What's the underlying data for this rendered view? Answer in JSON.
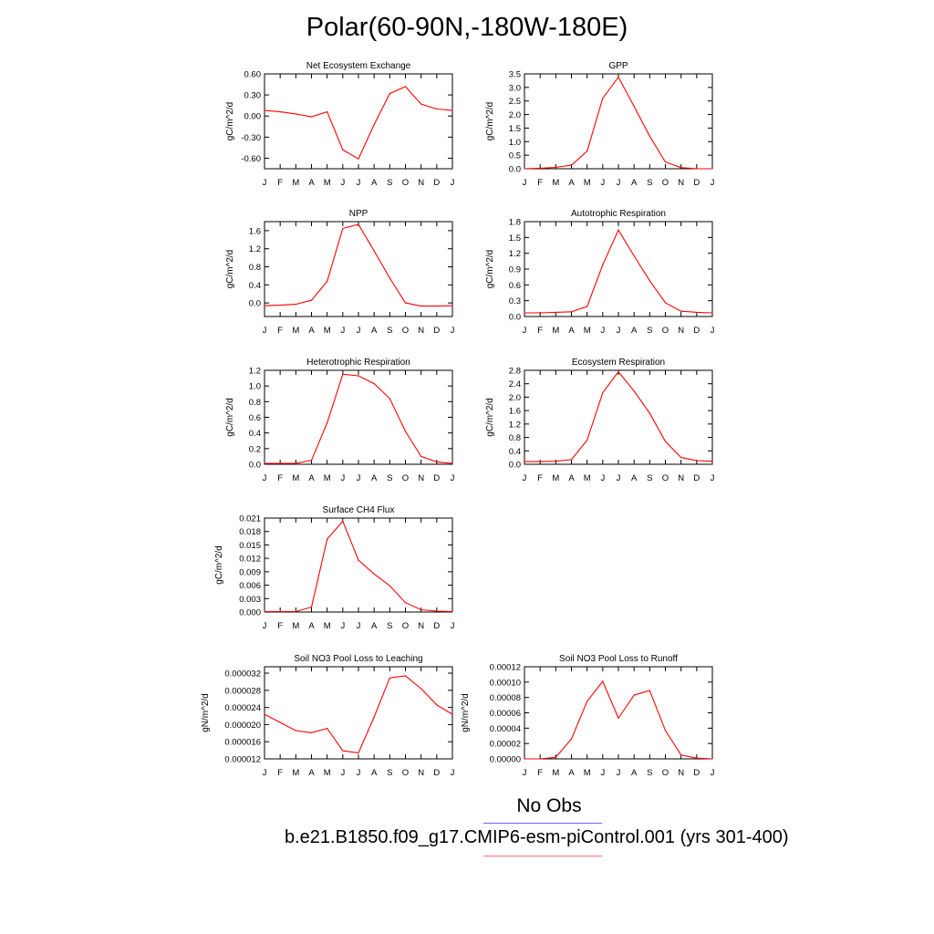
{
  "title": "Polar(60-90N,-180W-180E)",
  "legend": {
    "obs_label": "No Obs",
    "obs_color": "#6b6bff",
    "model_label": "b.e21.B1850.f09_g17.CMIP6-esm-piControl.001 (yrs 301-400)",
    "model_color": "#ff6b6b"
  },
  "line_color": "#ff0000",
  "chart_data": [
    {
      "type": "line",
      "title": "Net Ecosystem Exchange",
      "ylabel": "gC/m^2/d",
      "categories": [
        "J",
        "F",
        "M",
        "A",
        "M",
        "J",
        "J",
        "A",
        "S",
        "O",
        "N",
        "D",
        "J"
      ],
      "ylim": [
        -0.75,
        0.6
      ],
      "yticks": [
        "0.60",
        "0.30",
        "0.00",
        "-0.30",
        "-0.60"
      ],
      "ytick_values": [
        0.6,
        0.3,
        0.0,
        -0.3,
        -0.6
      ],
      "values": [
        0.08,
        0.06,
        0.03,
        -0.01,
        0.06,
        -0.48,
        -0.61,
        -0.12,
        0.32,
        0.42,
        0.17,
        0.1,
        0.08
      ]
    },
    {
      "type": "line",
      "title": "GPP",
      "ylabel": "gC/m^2/d",
      "categories": [
        "J",
        "F",
        "M",
        "A",
        "M",
        "J",
        "J",
        "A",
        "S",
        "O",
        "N",
        "D",
        "J"
      ],
      "ylim": [
        0,
        3.5
      ],
      "yticks": [
        "3.5",
        "3.0",
        "2.5",
        "2.0",
        "1.5",
        "1.0",
        "0.5",
        "0.0"
      ],
      "ytick_values": [
        3.5,
        3.0,
        2.5,
        2.0,
        1.5,
        1.0,
        0.5,
        0.0
      ],
      "values": [
        0.0,
        0.02,
        0.05,
        0.13,
        0.65,
        2.6,
        3.38,
        2.3,
        1.2,
        0.25,
        0.04,
        0.0,
        0.0
      ]
    },
    {
      "type": "line",
      "title": "NPP",
      "ylabel": "gC/m^2/d",
      "categories": [
        "J",
        "F",
        "M",
        "A",
        "M",
        "J",
        "J",
        "A",
        "S",
        "O",
        "N",
        "D",
        "J"
      ],
      "ylim": [
        -0.3,
        1.8
      ],
      "yticks": [
        "1.6",
        "1.2",
        "0.8",
        "0.4",
        "0.0"
      ],
      "ytick_values": [
        1.6,
        1.2,
        0.8,
        0.4,
        0.0
      ],
      "values": [
        -0.06,
        -0.05,
        -0.03,
        0.06,
        0.48,
        1.65,
        1.74,
        1.15,
        0.55,
        0.0,
        -0.07,
        -0.07,
        -0.06
      ]
    },
    {
      "type": "line",
      "title": "Autotrophic Respiration",
      "ylabel": "gC/m^2/d",
      "categories": [
        "J",
        "F",
        "M",
        "A",
        "M",
        "J",
        "J",
        "A",
        "S",
        "O",
        "N",
        "D",
        "J"
      ],
      "ylim": [
        0,
        1.8
      ],
      "yticks": [
        "1.8",
        "1.5",
        "1.2",
        "0.9",
        "0.6",
        "0.3",
        "0.0"
      ],
      "ytick_values": [
        1.8,
        1.5,
        1.2,
        0.9,
        0.6,
        0.3,
        0.0
      ],
      "values": [
        0.07,
        0.07,
        0.08,
        0.09,
        0.19,
        0.98,
        1.64,
        1.15,
        0.68,
        0.26,
        0.1,
        0.08,
        0.07
      ]
    },
    {
      "type": "line",
      "title": "Heterotrophic Respiration",
      "ylabel": "gC/m^2/d",
      "categories": [
        "J",
        "F",
        "M",
        "A",
        "M",
        "J",
        "J",
        "A",
        "S",
        "O",
        "N",
        "D",
        "J"
      ],
      "ylim": [
        0,
        1.2
      ],
      "yticks": [
        "1.2",
        "1.0",
        "0.8",
        "0.6",
        "0.4",
        "0.2",
        "0.0"
      ],
      "ytick_values": [
        1.2,
        1.0,
        0.8,
        0.6,
        0.4,
        0.2,
        0.0
      ],
      "values": [
        0.01,
        0.01,
        0.01,
        0.05,
        0.53,
        1.15,
        1.13,
        1.03,
        0.84,
        0.42,
        0.1,
        0.03,
        0.01
      ]
    },
    {
      "type": "line",
      "title": "Ecosystem Respiration",
      "ylabel": "gC/m^2/d",
      "categories": [
        "J",
        "F",
        "M",
        "A",
        "M",
        "J",
        "J",
        "A",
        "S",
        "O",
        "N",
        "D",
        "J"
      ],
      "ylim": [
        0,
        2.8
      ],
      "yticks": [
        "2.8",
        "2.4",
        "2.0",
        "1.6",
        "1.2",
        "0.8",
        "0.4",
        "0.0"
      ],
      "ytick_values": [
        2.8,
        2.4,
        2.0,
        1.6,
        1.2,
        0.8,
        0.4,
        0.0
      ],
      "values": [
        0.08,
        0.08,
        0.09,
        0.14,
        0.72,
        2.13,
        2.76,
        2.18,
        1.52,
        0.68,
        0.2,
        0.11,
        0.09
      ]
    },
    {
      "type": "line",
      "title": "Surface CH4 Flux",
      "ylabel": "gC/m^2/d",
      "categories": [
        "J",
        "F",
        "M",
        "A",
        "M",
        "J",
        "J",
        "A",
        "S",
        "O",
        "N",
        "D",
        "J"
      ],
      "ylim": [
        0,
        0.021
      ],
      "yticks": [
        "0.021",
        "0.018",
        "0.015",
        "0.012",
        "0.009",
        "0.006",
        "0.003",
        "0.000"
      ],
      "ytick_values": [
        0.021,
        0.018,
        0.015,
        0.012,
        0.009,
        0.006,
        0.003,
        0.0
      ],
      "values": [
        0.0001,
        0.0001,
        0.0001,
        0.0011,
        0.0163,
        0.0203,
        0.0116,
        0.0085,
        0.0059,
        0.0021,
        0.0005,
        0.0002,
        0.0001
      ]
    },
    {
      "type": "line",
      "title": "Soil NO3 Pool Loss to Leaching",
      "ylabel": "gN/m^2/d",
      "categories": [
        "J",
        "F",
        "M",
        "A",
        "M",
        "J",
        "J",
        "A",
        "S",
        "O",
        "N",
        "D",
        "J"
      ],
      "ylim": [
        1.2e-05,
        3.35e-05
      ],
      "yticks": [
        "0.000032",
        "0.000028",
        "0.000024",
        "0.000020",
        "0.000016",
        "0.000012"
      ],
      "ytick_values": [
        3.2e-05,
        2.8e-05,
        2.4e-05,
        2e-05,
        1.6e-05,
        1.2e-05
      ],
      "values": [
        2.24e-05,
        2.05e-05,
        1.86e-05,
        1.81e-05,
        1.91e-05,
        1.39e-05,
        1.34e-05,
        2.18e-05,
        3.09e-05,
        3.14e-05,
        2.84e-05,
        2.46e-05,
        2.24e-05
      ]
    },
    {
      "type": "line",
      "title": "Soil NO3 Pool Loss to Runoff",
      "ylabel": "gN/m^2/d",
      "categories": [
        "J",
        "F",
        "M",
        "A",
        "M",
        "J",
        "J",
        "A",
        "S",
        "O",
        "N",
        "D",
        "J"
      ],
      "ylim": [
        0,
        0.00012
      ],
      "yticks": [
        "0.00012",
        "0.00010",
        "0.00008",
        "0.00006",
        "0.00004",
        "0.00002",
        "0.00000"
      ],
      "ytick_values": [
        0.00012,
        0.0001,
        8e-05,
        6e-05,
        4e-05,
        2e-05,
        0.0
      ],
      "values": [
        0.0,
        0.0,
        2e-06,
        2.6e-05,
        7.5e-05,
        0.000101,
        5.3e-05,
        8.3e-05,
        8.9e-05,
        3.7e-05,
        5e-06,
        1e-06,
        0.0
      ]
    }
  ]
}
